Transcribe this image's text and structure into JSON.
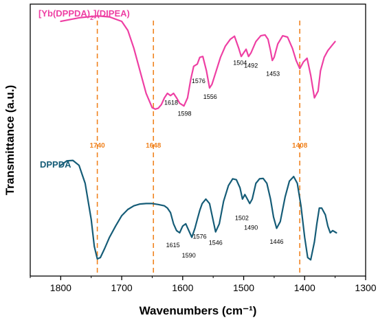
{
  "chart_data": {
    "type": "line",
    "xlabel": "Wavenumbers (cm⁻¹)",
    "ylabel": "Transmittance (a.u.)",
    "xlim": [
      1850,
      1300
    ],
    "x_reversed": true,
    "xticks": [
      1800,
      1700,
      1600,
      1500,
      1400,
      1300
    ],
    "y_ticks_shown": false,
    "grid": false,
    "colors": {
      "top": "#ee3fa3",
      "bottom": "#155c77",
      "guide": "#f0821e"
    },
    "series": [
      {
        "name": "[Yb(DPPDA)2](DIPEA)",
        "label_main": "[Yb(DPPDA)",
        "label_sub": "2",
        "label_end": "](DIPEA)",
        "x": [
          1800,
          1770,
          1740,
          1720,
          1700,
          1690,
          1680,
          1670,
          1660,
          1650,
          1645,
          1640,
          1635,
          1630,
          1625,
          1620,
          1615,
          1610,
          1605,
          1598,
          1592,
          1587,
          1582,
          1576,
          1572,
          1567,
          1561,
          1556,
          1552,
          1545,
          1538,
          1530,
          1522,
          1515,
          1508,
          1504,
          1500,
          1496,
          1492,
          1488,
          1480,
          1472,
          1465,
          1460,
          1456,
          1453,
          1450,
          1444,
          1436,
          1428,
          1420,
          1414,
          1408,
          1402,
          1396,
          1390,
          1384,
          1378,
          1374,
          1368,
          1362,
          1356,
          1350
        ],
        "y": [
          93,
          93.8,
          94.2,
          94,
          93,
          91,
          87,
          82,
          77,
          73.8,
          73.5,
          73.7,
          74.5,
          76,
          77,
          76.5,
          77,
          76,
          74.8,
          74.2,
          76,
          80,
          83,
          83.5,
          85,
          85.2,
          82,
          78.2,
          79,
          82,
          85,
          87.5,
          89,
          89.7,
          87,
          85.2,
          86,
          86.8,
          85.2,
          86,
          88.5,
          89.8,
          90,
          89,
          86.5,
          84.3,
          85,
          88,
          89.8,
          89.5,
          87,
          84.3,
          82.5,
          84,
          84.8,
          81,
          76,
          77.5,
          82,
          85,
          86.5,
          87.5,
          88.5
        ]
      },
      {
        "name": "DPPDA",
        "x": [
          1800,
          1790,
          1780,
          1770,
          1760,
          1750,
          1745,
          1740,
          1735,
          1728,
          1720,
          1710,
          1700,
          1690,
          1680,
          1670,
          1660,
          1650,
          1640,
          1630,
          1625,
          1620,
          1615,
          1610,
          1605,
          1600,
          1595,
          1590,
          1585,
          1580,
          1576,
          1572,
          1568,
          1562,
          1556,
          1552,
          1546,
          1540,
          1533,
          1525,
          1518,
          1512,
          1506,
          1502,
          1498,
          1494,
          1490,
          1486,
          1480,
          1474,
          1468,
          1462,
          1456,
          1451,
          1446,
          1440,
          1432,
          1425,
          1418,
          1412,
          1406,
          1400,
          1395,
          1390,
          1384,
          1380,
          1376,
          1372,
          1366,
          1362,
          1358,
          1354,
          1348
        ],
        "y": [
          61,
          62,
          62.1,
          61,
          57,
          49,
          43,
          40.2,
          40.5,
          42.5,
          45,
          47.5,
          49.8,
          51.2,
          52,
          52.4,
          52.5,
          52.5,
          52.3,
          52,
          51.5,
          50.5,
          48,
          46.5,
          46,
          47.5,
          48,
          46.5,
          45,
          47,
          49,
          51,
          52.5,
          53.5,
          52.5,
          50,
          46.2,
          48,
          53,
          56.5,
          58,
          57.8,
          56,
          53.5,
          54.5,
          53.5,
          52.5,
          53.5,
          57,
          58,
          58.1,
          57,
          53.5,
          49.5,
          47,
          48.5,
          54,
          57.5,
          58.5,
          57,
          52,
          45,
          40.5,
          40,
          44,
          48,
          51.5,
          51.5,
          50,
          47.5,
          46,
          46.5,
          46
        ]
      }
    ],
    "peak_labels": [
      {
        "text": "1618",
        "x": 1619,
        "y": 74.5
      },
      {
        "text": "1598",
        "x": 1597,
        "y": 72.0
      },
      {
        "text": "1576",
        "x": 1574,
        "y": 79.3
      },
      {
        "text": "1556",
        "x": 1555,
        "y": 75.8
      },
      {
        "text": "1504",
        "x": 1506,
        "y": 83.3
      },
      {
        "text": "1492",
        "x": 1488,
        "y": 82.7
      },
      {
        "text": "1453",
        "x": 1452,
        "y": 80.9
      },
      {
        "text": "1615",
        "x": 1616,
        "y": 42.8
      },
      {
        "text": "1590",
        "x": 1590,
        "y": 40.5
      },
      {
        "text": "1576",
        "x": 1572,
        "y": 44.7
      },
      {
        "text": "1546",
        "x": 1546,
        "y": 43.3
      },
      {
        "text": "1502",
        "x": 1503,
        "y": 48.8
      },
      {
        "text": "1490",
        "x": 1488,
        "y": 46.7
      },
      {
        "text": "1446",
        "x": 1446,
        "y": 43.6
      }
    ],
    "guides": [
      {
        "x": 1740,
        "text": "1740"
      },
      {
        "x": 1648,
        "text": "1648"
      },
      {
        "x": 1408,
        "text": "1408"
      }
    ]
  }
}
